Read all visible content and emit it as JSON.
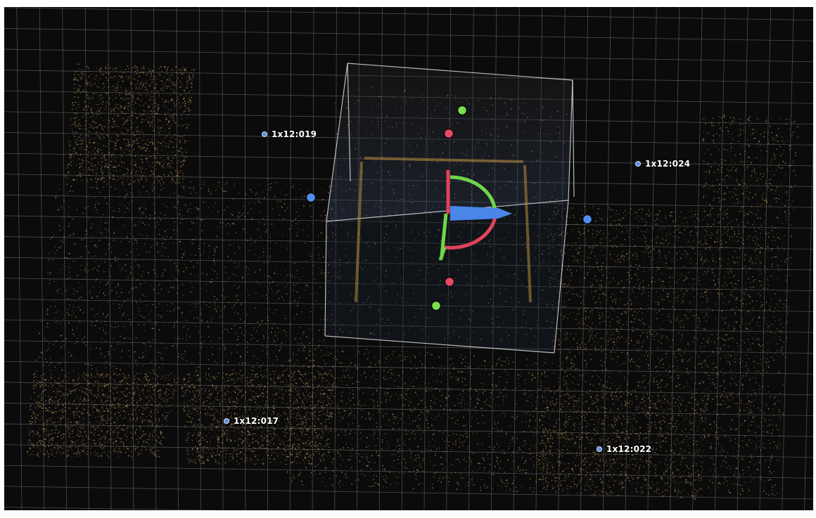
{
  "viewer": {
    "background": "#0b0b0b",
    "grid_color": "#9a9a9a",
    "pointcloud_color": "#b08a4c",
    "bounding_box_color": "#d9d9d9"
  },
  "labels": [
    {
      "id": "l019",
      "text": "1x12:019"
    },
    {
      "id": "l024",
      "text": "1x12:024"
    },
    {
      "id": "l017",
      "text": "1x12:017"
    },
    {
      "id": "l022",
      "text": "1x12:022"
    }
  ],
  "gizmo": {
    "axis_colors": {
      "x": "#e0435c",
      "y": "#6fd64a",
      "z": "#4a86e8"
    }
  },
  "handles": {
    "green": "#77e04a",
    "red": "#e84a66",
    "blue": "#4f8ef0"
  }
}
